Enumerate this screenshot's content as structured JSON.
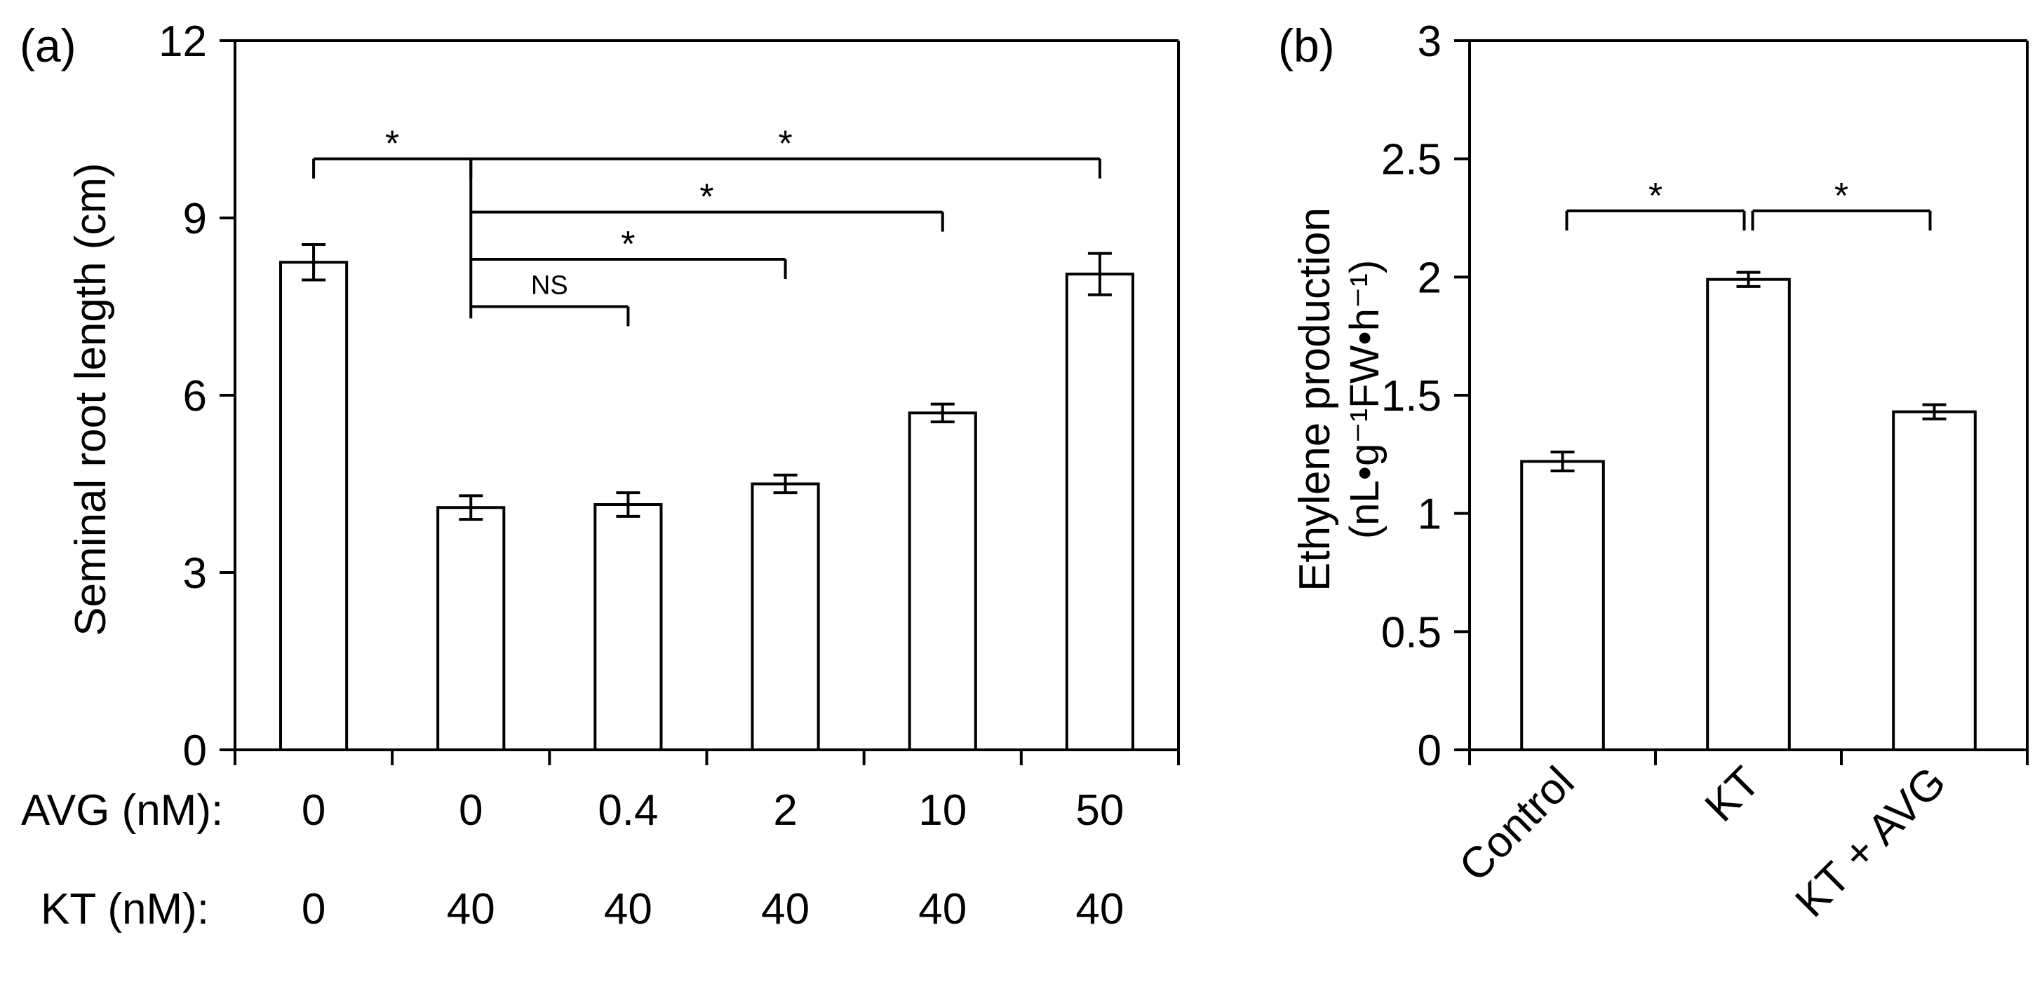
{
  "chart_data": [
    {
      "type": "bar",
      "panel_label": "(a)",
      "ylabel": "Seminal root length (cm)",
      "ylim": [
        0,
        12
      ],
      "yticks": [
        "0",
        "3",
        "6",
        "9",
        "12"
      ],
      "grid": false,
      "legend": "none",
      "row_labels": [
        "AVG  (nM):",
        "KT  (nM):"
      ],
      "categories": [
        {
          "avg": "0",
          "kt": "0"
        },
        {
          "avg": "0",
          "kt": "40"
        },
        {
          "avg": "0.4",
          "kt": "40"
        },
        {
          "avg": "2",
          "kt": "40"
        },
        {
          "avg": "10",
          "kt": "40"
        },
        {
          "avg": "50",
          "kt": "40"
        }
      ],
      "values": [
        8.25,
        4.1,
        4.15,
        4.5,
        5.7,
        8.05
      ],
      "errors": [
        0.3,
        0.2,
        0.2,
        0.15,
        0.15,
        0.35
      ],
      "bar_fill": "#ffffff",
      "bar_stroke": "#000000",
      "significance": [
        {
          "from": 0,
          "to": 1,
          "label": "*",
          "y": 10.0
        },
        {
          "from": 1,
          "to": 2,
          "label": "NS",
          "y": 7.5
        },
        {
          "from": 1,
          "to": 3,
          "label": "*",
          "y": 8.3
        },
        {
          "from": 1,
          "to": 4,
          "label": "*",
          "y": 9.1
        },
        {
          "from": 1,
          "to": 5,
          "label": "*",
          "y": 10.0
        }
      ]
    },
    {
      "type": "bar",
      "panel_label": "(b)",
      "ylabel_lines": [
        "Ethylene  production",
        "(nL•g⁻¹FW•h⁻¹)"
      ],
      "ylim": [
        0,
        3
      ],
      "yticks": [
        "0",
        "0.5",
        "1",
        "1.5",
        "2",
        "2.5",
        "3"
      ],
      "grid": false,
      "legend": "none",
      "categories": [
        "Control",
        "KT",
        "KT + AVG"
      ],
      "values": [
        1.22,
        1.99,
        1.43
      ],
      "errors": [
        0.04,
        0.03,
        0.03
      ],
      "bar_fill": "#ffffff",
      "bar_stroke": "#000000",
      "significance": [
        {
          "from": 0,
          "to": 1,
          "label": "*",
          "y": 2.28
        },
        {
          "from": 1,
          "to": 2,
          "label": "*",
          "y": 2.28
        }
      ]
    }
  ]
}
